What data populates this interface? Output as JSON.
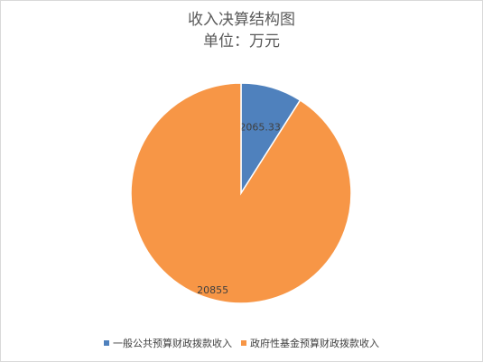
{
  "chart_data": {
    "type": "pie",
    "title": "收入决算结构图",
    "subtitle": "单位：万元",
    "categories": [
      "一般公共预算财政拨款收入",
      "政府性基金预算财政拨款收入"
    ],
    "values": [
      2065.33,
      20855
    ],
    "data_labels": [
      "2065.33",
      "20855"
    ],
    "colors": [
      "#4f81bd",
      "#f79646"
    ],
    "legend_position": "bottom"
  }
}
